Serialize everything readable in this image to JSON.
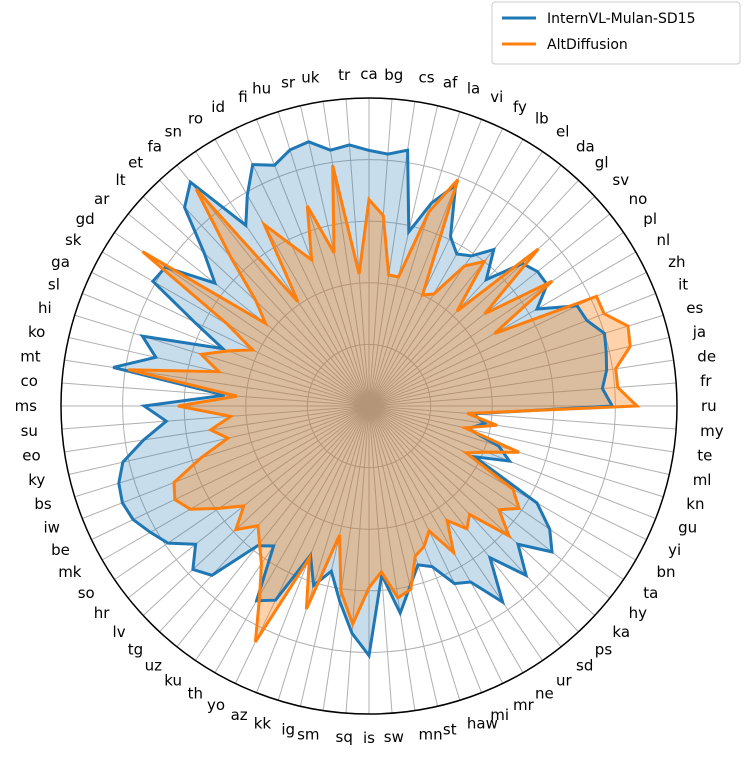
{
  "chart_data": {
    "type": "radar",
    "categories": [
      "ru",
      "fr",
      "de",
      "ja",
      "es",
      "it",
      "zh",
      "nl",
      "pl",
      "no",
      "sv",
      "gl",
      "da",
      "el",
      "lb",
      "fy",
      "vi",
      "la",
      "af",
      "cs",
      "bg",
      "ca",
      "tr",
      "uk",
      "sr",
      "hu",
      "fi",
      "id",
      "ro",
      "sn",
      "fa",
      "et",
      "lt",
      "ar",
      "gd",
      "sk",
      "ga",
      "sl",
      "hi",
      "ko",
      "mt",
      "co",
      "ms",
      "su",
      "eo",
      "ky",
      "bs",
      "iw",
      "be",
      "mk",
      "so",
      "hr",
      "lv",
      "tg",
      "uz",
      "ku",
      "th",
      "yo",
      "az",
      "kk",
      "ig",
      "sm",
      "sq",
      "is",
      "sw",
      "mn",
      "st",
      "haw",
      "mi",
      "mr",
      "ne",
      "ur",
      "sd",
      "ps",
      "ka",
      "hy",
      "ta",
      "bn",
      "yi",
      "gu",
      "kn",
      "ml",
      "te",
      "my"
    ],
    "radial_range": [
      0,
      1
    ],
    "radial_ticks": [
      0.2,
      0.4,
      0.6,
      0.8
    ],
    "grid": true,
    "legend_position": "top-right",
    "series": [
      {
        "name": "InternVL-Mulan-SD15",
        "color": "#1f77b4",
        "values": [
          0.79,
          0.76,
          0.78,
          0.79,
          0.8,
          0.76,
          0.75,
          0.63,
          0.7,
          0.7,
          0.68,
          0.56,
          0.65,
          0.59,
          0.57,
          0.61,
          0.77,
          0.69,
          0.58,
          0.84,
          0.82,
          0.83,
          0.85,
          0.84,
          0.88,
          0.87,
          0.84,
          0.87,
          0.79,
          0.71,
          0.93,
          0.88,
          0.73,
          0.64,
          0.8,
          0.81,
          0.63,
          0.51,
          0.77,
          0.71,
          0.84,
          0.47,
          0.73,
          0.66,
          0.74,
          0.82,
          0.85,
          0.86,
          0.85,
          0.82,
          0.79,
          0.72,
          0.78,
          0.75,
          0.58,
          0.55,
          0.73,
          0.7,
          0.52,
          0.61,
          0.55,
          0.64,
          0.74,
          0.81,
          0.55,
          0.68,
          0.6,
          0.54,
          0.56,
          0.64,
          0.66,
          0.77,
          0.63,
          0.75,
          0.66,
          0.76,
          0.71,
          0.63,
          0.38,
          0.49,
          0.44,
          0.33,
          0.38,
          0.34
        ]
      },
      {
        "name": "AltDiffusion",
        "color": "#ff7f0e",
        "values": [
          0.87,
          0.81,
          0.81,
          0.87,
          0.88,
          0.82,
          0.82,
          0.47,
          0.72,
          0.48,
          0.75,
          0.42,
          0.6,
          0.55,
          0.42,
          0.4,
          0.79,
          0.66,
          0.43,
          0.43,
          0.62,
          0.67,
          0.43,
          0.79,
          0.51,
          0.68,
          0.51,
          0.58,
          0.68,
          0.41,
          0.9,
          0.66,
          0.5,
          0.43,
          0.89,
          0.53,
          0.42,
          0.49,
          0.57,
          0.5,
          0.79,
          0.43,
          0.62,
          0.45,
          0.52,
          0.47,
          0.57,
          0.68,
          0.7,
          0.67,
          0.59,
          0.52,
          0.59,
          0.53,
          0.57,
          0.62,
          0.71,
          0.85,
          0.53,
          0.69,
          0.43,
          0.61,
          0.71,
          0.59,
          0.54,
          0.63,
          0.61,
          0.51,
          0.49,
          0.45,
          0.55,
          0.45,
          0.51,
          0.48,
          0.62,
          0.54,
          0.59,
          0.54,
          0.35,
          0.41,
          0.51,
          0.32,
          0.42,
          0.32
        ]
      }
    ]
  }
}
